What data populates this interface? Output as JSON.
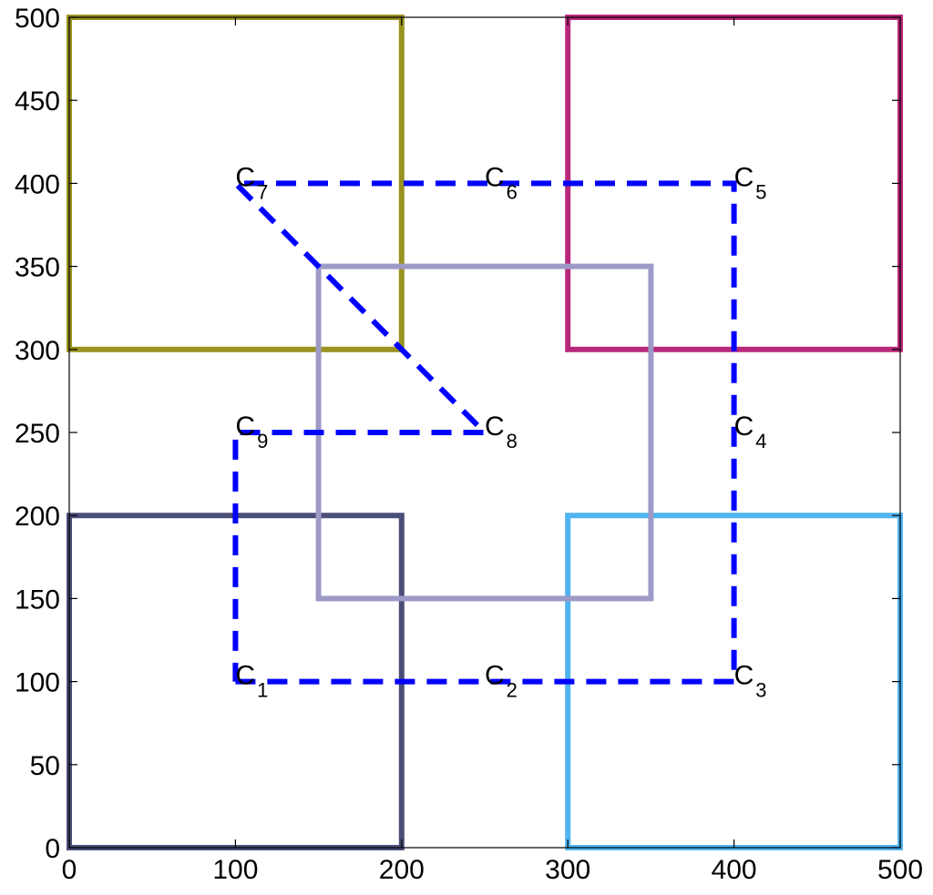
{
  "chart_data": {
    "type": "line",
    "title": "",
    "xlabel": "",
    "ylabel": "",
    "xlim": [
      0,
      500
    ],
    "ylim": [
      0,
      500
    ],
    "xticks": [
      0,
      100,
      200,
      300,
      400,
      500
    ],
    "yticks": [
      0,
      50,
      100,
      150,
      200,
      250,
      300,
      350,
      400,
      450,
      500
    ],
    "grid": false,
    "legend": "none",
    "regions": [
      {
        "x": [
          0,
          200
        ],
        "y": [
          0,
          200
        ],
        "color": "#4b4e78"
      },
      {
        "x": [
          300,
          500
        ],
        "y": [
          0,
          200
        ],
        "color": "#50b4f0"
      },
      {
        "x": [
          0,
          200
        ],
        "y": [
          300,
          500
        ],
        "color": "#9a9220"
      },
      {
        "x": [
          300,
          500
        ],
        "y": [
          300,
          500
        ],
        "color": "#b8287a"
      },
      {
        "x": [
          150,
          350
        ],
        "y": [
          150,
          350
        ],
        "color": "#9e9ac8"
      }
    ],
    "path": {
      "color": "#0000ff",
      "style": "dashed",
      "points": [
        {
          "name": "C",
          "sub": "1",
          "x": 100,
          "y": 100
        },
        {
          "name": "C",
          "sub": "2",
          "x": 250,
          "y": 100
        },
        {
          "name": "C",
          "sub": "3",
          "x": 400,
          "y": 100
        },
        {
          "name": "C",
          "sub": "4",
          "x": 400,
          "y": 250
        },
        {
          "name": "C",
          "sub": "5",
          "x": 400,
          "y": 400
        },
        {
          "name": "C",
          "sub": "6",
          "x": 250,
          "y": 400
        },
        {
          "name": "C",
          "sub": "7",
          "x": 100,
          "y": 400
        },
        {
          "name": "C",
          "sub": "8",
          "x": 250,
          "y": 250
        },
        {
          "name": "C",
          "sub": "9",
          "x": 100,
          "y": 250
        },
        {
          "name": "C",
          "sub": "1",
          "x": 100,
          "y": 100
        }
      ]
    }
  }
}
